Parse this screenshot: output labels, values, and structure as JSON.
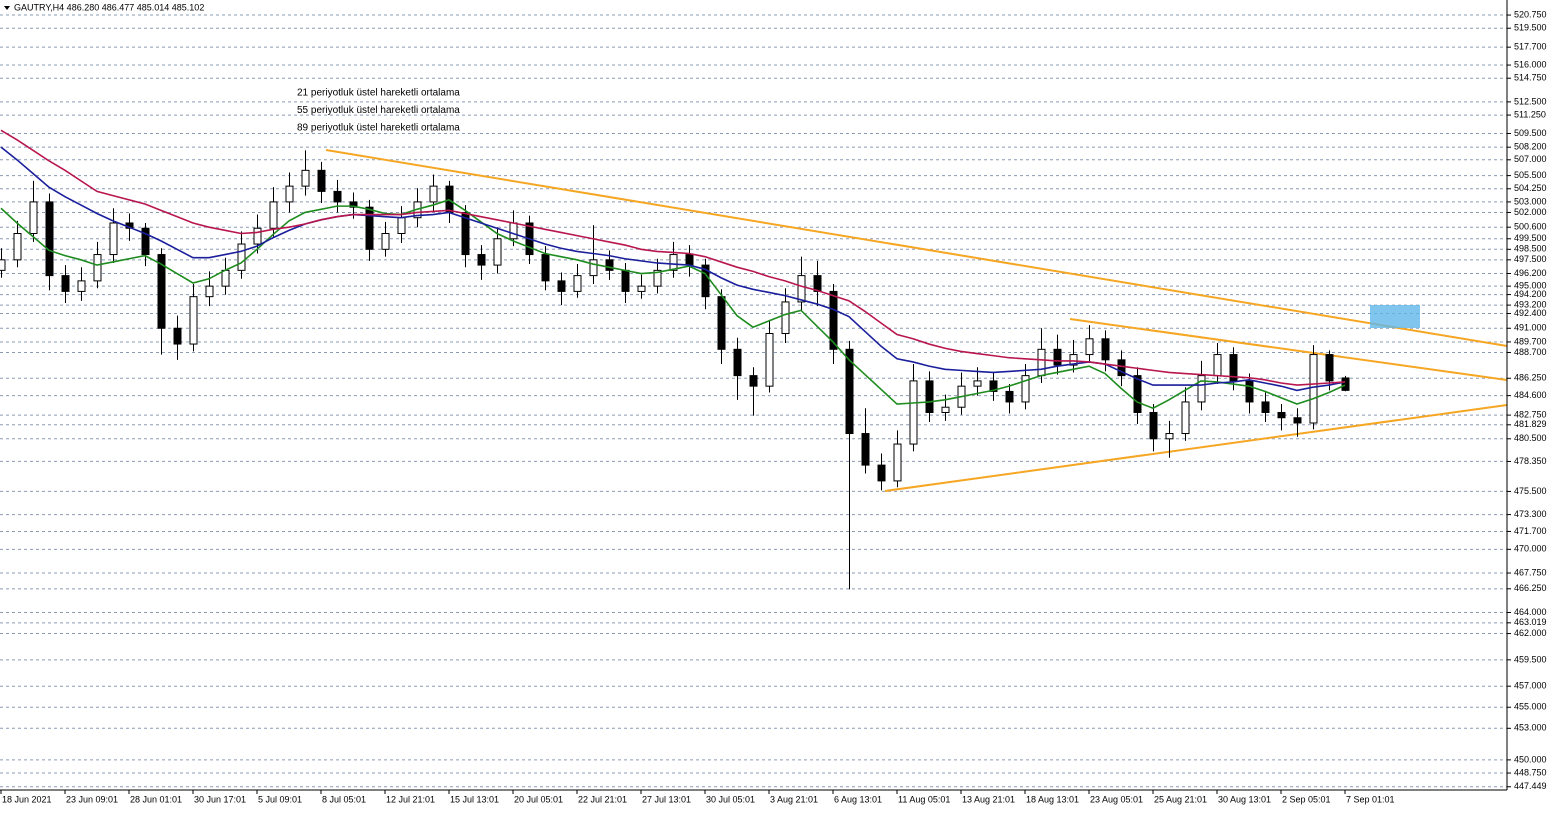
{
  "chart_data": {
    "type": "candlestick",
    "title": "GAUTRY,H4  486.280 486.477 485.014 485.102",
    "categories": [
      "18 Jun 2021",
      null,
      null,
      null,
      "23 Jun 09:01",
      null,
      null,
      null,
      "28 Jun 01:01",
      null,
      null,
      null,
      "30 Jun 17:01",
      null,
      null,
      null,
      "5 Jul 09:01",
      null,
      null,
      null,
      "8 Jul 05:01",
      null,
      null,
      null,
      "12 Jul 21:01",
      null,
      null,
      null,
      "15 Jul 13:01",
      null,
      null,
      null,
      "20 Jul 05:01",
      null,
      null,
      null,
      "22 Jul 21:01",
      null,
      null,
      null,
      "27 Jul 13:01",
      null,
      null,
      null,
      "30 Jul 05:01",
      null,
      null,
      null,
      "3 Aug 21:01",
      null,
      null,
      null,
      "6 Aug 13:01",
      null,
      null,
      null,
      "11 Aug 05:01",
      null,
      null,
      null,
      "13 Aug 21:01",
      null,
      null,
      null,
      "18 Aug 13:01",
      null,
      null,
      null,
      "23 Aug 05:01",
      null,
      null,
      null,
      "25 Aug 21:01",
      null,
      null,
      null,
      "30 Aug 13:01",
      null,
      null,
      null,
      "2 Sep 05:01",
      null,
      null,
      null,
      "7 Sep 01:01"
    ],
    "candles": [
      [
        496.5,
        498.6,
        495.8,
        497.5
      ],
      [
        497.5,
        501.2,
        496.8,
        500.0
      ],
      [
        500.0,
        505.0,
        499.2,
        503.0
      ],
      [
        503.0,
        503.8,
        494.6,
        496.0
      ],
      [
        496.0,
        497.0,
        493.4,
        494.5
      ],
      [
        494.5,
        496.8,
        493.6,
        495.5
      ],
      [
        495.5,
        499.2,
        494.8,
        498.0
      ],
      [
        498.0,
        502.4,
        497.2,
        501.0
      ],
      [
        501.0,
        501.9,
        499.3,
        500.5
      ],
      [
        500.5,
        501.0,
        496.9,
        498.0
      ],
      [
        498.0,
        498.6,
        488.5,
        491.0
      ],
      [
        491.0,
        492.2,
        488.0,
        489.5
      ],
      [
        489.5,
        495.2,
        488.8,
        494.0
      ],
      [
        494.0,
        496.4,
        493.1,
        495.0
      ],
      [
        495.0,
        497.7,
        494.2,
        496.5
      ],
      [
        496.5,
        500.2,
        495.7,
        499.0
      ],
      [
        499.0,
        501.8,
        498.1,
        500.5
      ],
      [
        500.5,
        504.4,
        499.7,
        503.0
      ],
      [
        503.0,
        505.8,
        502.0,
        504.5
      ],
      [
        504.5,
        507.9,
        503.6,
        506.0
      ],
      [
        506.0,
        506.8,
        502.9,
        504.0
      ],
      [
        504.0,
        505.1,
        502.0,
        503.0
      ],
      [
        503.0,
        503.9,
        501.4,
        502.5
      ],
      [
        502.5,
        503.2,
        497.4,
        498.5
      ],
      [
        498.5,
        501.1,
        497.8,
        500.0
      ],
      [
        500.0,
        502.6,
        499.1,
        501.5
      ],
      [
        501.5,
        504.3,
        500.6,
        503.0
      ],
      [
        503.0,
        505.6,
        502.1,
        504.5
      ],
      [
        504.5,
        505.0,
        501.0,
        502.0
      ],
      [
        502.0,
        502.7,
        496.8,
        498.0
      ],
      [
        498.0,
        498.9,
        495.6,
        497.0
      ],
      [
        497.0,
        500.6,
        496.2,
        499.5
      ],
      [
        499.5,
        502.2,
        498.8,
        501.0
      ],
      [
        501.0,
        501.7,
        497.1,
        498.0
      ],
      [
        498.0,
        498.8,
        494.6,
        495.5
      ],
      [
        495.5,
        496.3,
        493.2,
        494.5
      ],
      [
        494.5,
        497.1,
        493.9,
        496.0
      ],
      [
        496.0,
        500.8,
        495.2,
        497.5
      ],
      [
        497.5,
        498.4,
        495.6,
        496.5
      ],
      [
        496.5,
        497.2,
        493.4,
        494.5
      ],
      [
        494.5,
        496.1,
        493.8,
        495.0
      ],
      [
        495.0,
        497.6,
        494.3,
        496.5
      ],
      [
        496.5,
        499.2,
        495.8,
        498.0
      ],
      [
        498.0,
        498.9,
        495.9,
        497.0
      ],
      [
        497.0,
        497.6,
        492.8,
        494.0
      ],
      [
        494.0,
        494.7,
        487.6,
        489.0
      ],
      [
        489.0,
        490.1,
        484.2,
        486.5
      ],
      [
        486.5,
        487.3,
        482.7,
        485.5
      ],
      [
        485.5,
        491.8,
        484.9,
        490.5
      ],
      [
        490.5,
        494.8,
        489.6,
        493.5
      ],
      [
        493.5,
        497.8,
        492.7,
        496.0
      ],
      [
        496.0,
        497.4,
        493.1,
        494.5
      ],
      [
        494.5,
        495.2,
        487.6,
        489.0
      ],
      [
        489.0,
        489.8,
        466.2,
        481.0
      ],
      [
        481.0,
        483.4,
        477.2,
        478.0
      ],
      [
        478.0,
        479.1,
        475.6,
        476.5
      ],
      [
        476.5,
        481.3,
        475.9,
        480.0
      ],
      [
        480.0,
        487.6,
        479.3,
        486.0
      ],
      [
        486.0,
        486.9,
        482.1,
        483.0
      ],
      [
        483.0,
        484.7,
        482.2,
        483.5
      ],
      [
        483.5,
        486.8,
        482.8,
        485.5
      ],
      [
        485.5,
        487.3,
        484.6,
        486.0
      ],
      [
        486.0,
        486.8,
        484.1,
        485.0
      ],
      [
        485.0,
        485.7,
        482.9,
        484.0
      ],
      [
        484.0,
        487.6,
        483.3,
        486.5
      ],
      [
        486.5,
        491.0,
        485.8,
        489.0
      ],
      [
        489.0,
        490.4,
        486.6,
        487.5
      ],
      [
        487.5,
        489.9,
        486.8,
        488.5
      ],
      [
        488.5,
        491.3,
        487.7,
        490.0
      ],
      [
        490.0,
        490.8,
        486.9,
        488.0
      ],
      [
        488.0,
        488.9,
        485.5,
        486.5
      ],
      [
        486.5,
        487.3,
        481.9,
        483.0
      ],
      [
        483.0,
        483.8,
        479.3,
        480.5
      ],
      [
        480.5,
        482.2,
        478.7,
        481.0
      ],
      [
        481.0,
        485.4,
        480.3,
        484.0
      ],
      [
        484.0,
        487.9,
        483.2,
        486.5
      ],
      [
        486.5,
        489.6,
        485.7,
        488.5
      ],
      [
        488.5,
        489.2,
        485.1,
        486.0
      ],
      [
        486.0,
        486.7,
        482.9,
        484.0
      ],
      [
        484.0,
        484.9,
        482.1,
        483.0
      ],
      [
        483.0,
        483.8,
        481.3,
        482.5
      ],
      [
        482.5,
        483.4,
        480.7,
        482.0
      ],
      [
        482.0,
        489.4,
        481.4,
        488.5
      ],
      [
        488.5,
        488.9,
        485.1,
        486.0
      ],
      [
        486.28,
        486.477,
        485.014,
        485.102
      ]
    ],
    "series": [
      {
        "name": "21 periyotluk üstel hareketli ortalama",
        "color": "#1e8c1e",
        "values": [
          502.4,
          501.0,
          499.7,
          498.4,
          497.9,
          497.5,
          497.0,
          497.3,
          497.6,
          497.9,
          497.1,
          496.2,
          495.3,
          495.7,
          496.5,
          497.2,
          498.5,
          499.9,
          501.2,
          502.0,
          502.3,
          502.6,
          502.6,
          502.3,
          501.9,
          501.8,
          502.3,
          502.7,
          503.2,
          502.2,
          501.1,
          500.0,
          499.3,
          498.7,
          498.1,
          497.8,
          497.5,
          497.1,
          496.8,
          496.5,
          496.2,
          496.3,
          496.6,
          496.9,
          496.2,
          494.2,
          492.2,
          491.1,
          491.7,
          492.3,
          492.7,
          491.2,
          489.7,
          488.0,
          486.6,
          485.2,
          483.8,
          483.9,
          484.0,
          484.2,
          484.5,
          484.8,
          485.1,
          485.5,
          486.0,
          486.5,
          486.8,
          487.1,
          487.4,
          486.7,
          485.3,
          484.0,
          483.4,
          484.2,
          485.1,
          486.0,
          485.9,
          485.7,
          485.5,
          485.0,
          484.4,
          483.8,
          484.3,
          484.9,
          485.6
        ]
      },
      {
        "name": "55 periyotluk üstel hareketli ortalama",
        "color": "#1a1f9c",
        "values": [
          508.2,
          507.0,
          505.7,
          504.4,
          503.5,
          502.7,
          501.9,
          501.2,
          500.6,
          500.0,
          499.3,
          498.5,
          497.7,
          497.7,
          498.0,
          498.3,
          498.8,
          499.6,
          500.3,
          500.9,
          501.3,
          501.6,
          501.8,
          501.7,
          501.6,
          501.5,
          501.7,
          501.8,
          502.0,
          501.5,
          501.0,
          500.5,
          500.0,
          499.5,
          499.0,
          498.6,
          498.3,
          498.1,
          497.9,
          497.6,
          497.4,
          497.2,
          497.1,
          497.0,
          496.6,
          495.8,
          495.1,
          494.7,
          494.4,
          494.1,
          493.7,
          493.3,
          492.8,
          492.1,
          490.7,
          489.3,
          488.1,
          487.8,
          487.4,
          487.1,
          487.0,
          486.9,
          486.8,
          486.9,
          487.0,
          487.1,
          487.4,
          487.6,
          487.8,
          487.6,
          486.9,
          486.2,
          485.6,
          485.6,
          485.6,
          485.6,
          485.8,
          485.9,
          486.1,
          485.8,
          485.5,
          485.1,
          485.4,
          485.6,
          485.9
        ]
      },
      {
        "name": "89 periyotluk üstel hareketli ortalama",
        "color": "#b8164e",
        "values": [
          509.8,
          508.9,
          507.9,
          506.9,
          506.0,
          505.0,
          504.0,
          503.6,
          503.2,
          502.8,
          502.2,
          501.6,
          501.0,
          500.6,
          500.3,
          500.0,
          500.1,
          500.4,
          500.6,
          500.9,
          501.3,
          501.6,
          501.8,
          501.8,
          501.8,
          501.8,
          502.0,
          502.1,
          502.2,
          501.9,
          501.6,
          501.3,
          501.0,
          500.7,
          500.4,
          500.1,
          499.8,
          499.5,
          499.2,
          498.9,
          498.5,
          498.3,
          498.2,
          498.1,
          497.8,
          497.3,
          496.8,
          496.4,
          495.9,
          495.5,
          495.0,
          494.6,
          494.1,
          493.6,
          492.6,
          491.5,
          490.4,
          490.0,
          489.5,
          489.1,
          488.8,
          488.6,
          488.4,
          488.2,
          488.1,
          488.0,
          487.9,
          487.9,
          487.8,
          487.6,
          487.4,
          487.2,
          487.0,
          486.8,
          486.7,
          486.6,
          486.5,
          486.4,
          486.3,
          486.1,
          485.8,
          485.6,
          485.7,
          485.8,
          485.9
        ]
      }
    ],
    "ylim": [
      447.14,
      522.18
    ],
    "yticks": [
      {
        "value": 520.75,
        "label": "520.750"
      },
      {
        "value": 519.5,
        "label": "519.500"
      },
      {
        "value": 517.7,
        "label": "517.700"
      },
      {
        "value": 516,
        "label": "516.000"
      },
      {
        "value": 514.75,
        "label": "514.750"
      },
      {
        "value": 512.5,
        "label": "512.500"
      },
      {
        "value": 511.25,
        "label": "511.250"
      },
      {
        "value": 509.5,
        "label": "509.500"
      },
      {
        "value": 508.2,
        "label": "508.200"
      },
      {
        "value": 507,
        "label": "507.000"
      },
      {
        "value": 505.5,
        "label": "505.500"
      },
      {
        "value": 504.25,
        "label": "504.250"
      },
      {
        "value": 503,
        "label": "503.000"
      },
      {
        "value": 502,
        "label": "502.000"
      },
      {
        "value": 500.6,
        "label": "500.600"
      },
      {
        "value": 499.5,
        "label": "499.500"
      },
      {
        "value": 498.5,
        "label": "498.500"
      },
      {
        "value": 497.5,
        "label": "497.500"
      },
      {
        "value": 496.2,
        "label": "496.200"
      },
      {
        "value": 495,
        "label": "495.000"
      },
      {
        "value": 494.2,
        "label": "494.200"
      },
      {
        "value": 493.2,
        "label": "493.200"
      },
      {
        "value": 492.4,
        "label": "492.400"
      },
      {
        "value": 491,
        "label": "491.000"
      },
      {
        "value": 489.7,
        "label": "489.700"
      },
      {
        "value": 488.7,
        "label": "488.700"
      },
      {
        "value": 486.25,
        "label": "486.250"
      },
      {
        "value": 484.6,
        "label": "484.600"
      },
      {
        "value": 482.75,
        "label": "482.750"
      },
      {
        "value": 481.829,
        "label": "481.829"
      },
      {
        "value": 480.5,
        "label": "480.500"
      },
      {
        "value": 478.35,
        "label": "478.350"
      },
      {
        "value": 475.5,
        "label": "475.500"
      },
      {
        "value": 473.3,
        "label": "473.300"
      },
      {
        "value": 471.7,
        "label": "471.700"
      },
      {
        "value": 470,
        "label": "470.000"
      },
      {
        "value": 467.75,
        "label": "467.750"
      },
      {
        "value": 466.25,
        "label": "466.250"
      },
      {
        "value": 464,
        "label": "464.000"
      },
      {
        "value": 463.019,
        "label": "463.019"
      },
      {
        "value": 462,
        "label": "462.000"
      },
      {
        "value": 459.5,
        "label": "459.500"
      },
      {
        "value": 457,
        "label": "457.000"
      },
      {
        "value": 455,
        "label": "455.000"
      },
      {
        "value": 453,
        "label": "453.000"
      },
      {
        "value": 450,
        "label": "450.000"
      },
      {
        "value": 448.75,
        "label": "448.750"
      },
      {
        "value": 447.449,
        "label": "447.449"
      }
    ],
    "grid": true,
    "bull_color": "#ffffff",
    "bear_color": "#000000"
  }
}
